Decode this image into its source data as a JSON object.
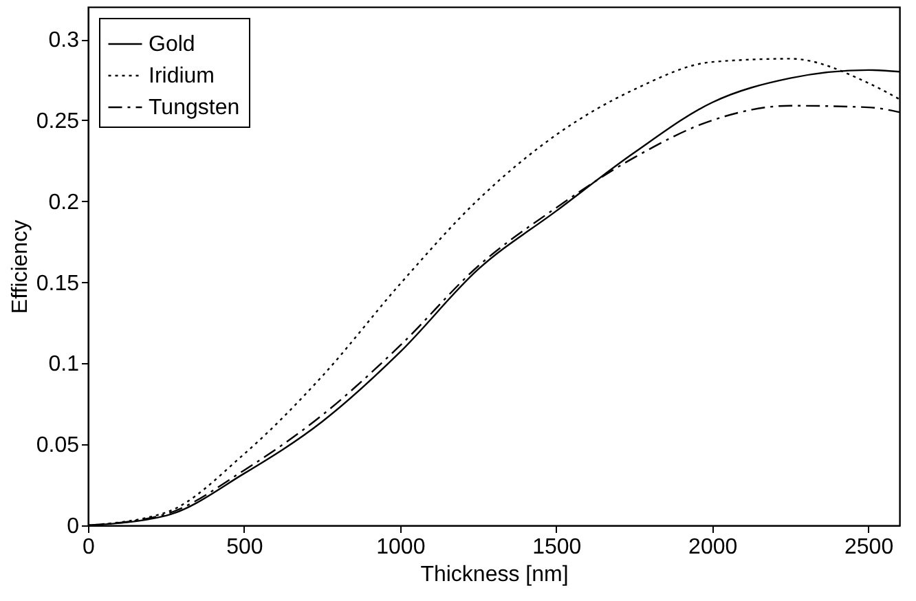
{
  "chart_data": {
    "type": "line",
    "xlabel": "Thickness [nm]",
    "ylabel": "Efficiency",
    "x": [
      0,
      250,
      500,
      750,
      1000,
      1250,
      1500,
      1750,
      2000,
      2250,
      2500,
      2600
    ],
    "series": [
      {
        "name": "Gold",
        "color": "#000000",
        "line_style": "solid",
        "values": [
          0,
          0.006,
          0.032,
          0.064,
          0.107,
          0.158,
          0.194,
          0.23,
          0.261,
          0.276,
          0.281,
          0.28
        ]
      },
      {
        "name": "Iridium",
        "color": "#000000",
        "line_style": "dotted",
        "values": [
          0,
          0.008,
          0.044,
          0.092,
          0.149,
          0.201,
          0.241,
          0.269,
          0.286,
          0.288,
          0.273,
          0.263
        ]
      },
      {
        "name": "Tungsten",
        "color": "#000000",
        "line_style": "dashdot",
        "values": [
          0,
          0.007,
          0.034,
          0.068,
          0.111,
          0.16,
          0.196,
          0.227,
          0.25,
          0.259,
          0.258,
          0.255
        ]
      }
    ],
    "xlim": [
      0,
      2600
    ],
    "xticks": [
      0,
      500,
      1000,
      1500,
      2000,
      2500
    ],
    "ylim": [
      0,
      0.32
    ],
    "yticks": [
      0,
      0.05,
      0.1,
      0.15,
      0.2,
      0.25,
      0.3
    ],
    "grid": false,
    "legend": "top left",
    "marker": "none"
  }
}
